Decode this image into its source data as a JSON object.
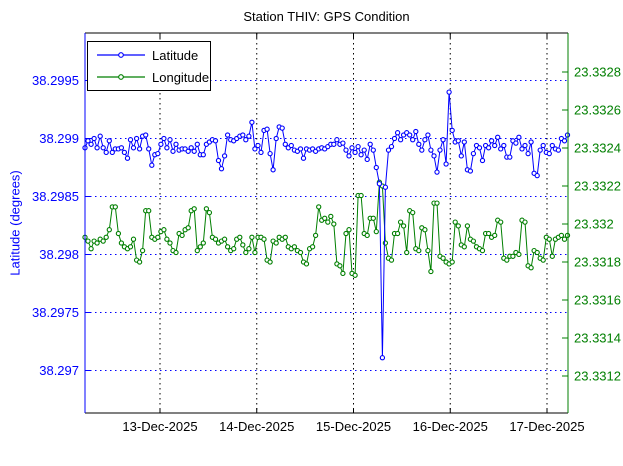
{
  "figure": {
    "title": "Station THIV: GPS Condition"
  },
  "chart_data": {
    "type": "line",
    "title": "Station THIV: GPS Condition",
    "x_axis": {
      "tick_labels": [
        "13-Dec-2025",
        "14-Dec-2025",
        "15-Dec-2025",
        "16-Dec-2025",
        "17-Dec-2025"
      ],
      "tick_values_days": [
        1,
        2,
        3,
        4,
        5
      ],
      "range_days": [
        0.2247,
        5.2119
      ]
    },
    "left_axis": {
      "label": "Latitude (degrees)",
      "color": "#0000ff",
      "tick_labels": [
        "38.2995",
        "38.299",
        "38.2985",
        "38.298",
        "38.2975",
        "38.297"
      ],
      "tick_values": [
        38.2995,
        38.299,
        38.2985,
        38.298,
        38.2975,
        38.297
      ],
      "range": [
        38.29663,
        38.29991
      ]
    },
    "right_axis": {
      "color": "#007f00",
      "tick_labels": [
        "23.3328",
        "23.3326",
        "23.3324",
        "23.3322",
        "23.332",
        "23.3318",
        "23.3316",
        "23.3314",
        "23.3312"
      ],
      "tick_values": [
        23.3328,
        23.3326,
        23.3324,
        23.3322,
        23.332,
        23.3318,
        23.3316,
        23.3314,
        23.3312
      ],
      "range": [
        23.33101,
        23.33301
      ]
    },
    "legend": [
      {
        "label": "Latitude",
        "color": "#0000ff"
      },
      {
        "label": "Longitude",
        "color": "#007f00"
      }
    ],
    "grid": {
      "horizontal_color": "#0000ff",
      "vertical_color": "#000000",
      "style": "dotted"
    },
    "x_start_days": 0.2247,
    "x_step_days": 0.031366,
    "series": [
      {
        "name": "Latitude",
        "axis": "left",
        "color": "#0000ff",
        "marker": "o",
        "values": [
          38.29892,
          38.29898,
          38.29895,
          38.299,
          38.29892,
          38.29902,
          38.29892,
          38.29888,
          38.29898,
          38.29888,
          38.29891,
          38.29891,
          38.29892,
          38.29888,
          38.29883,
          38.29899,
          38.29892,
          38.299,
          38.29891,
          38.29902,
          38.29903,
          38.29891,
          38.29877,
          38.29886,
          38.29887,
          38.29895,
          38.299,
          38.29892,
          38.29899,
          38.29889,
          38.29895,
          38.2989,
          38.29891,
          38.29891,
          38.29889,
          38.29892,
          38.29889,
          38.29895,
          38.29886,
          38.29886,
          38.29895,
          38.29897,
          38.29899,
          38.29898,
          38.29881,
          38.29874,
          38.29885,
          38.29903,
          38.29899,
          38.29898,
          38.299,
          38.29902,
          38.29903,
          38.29899,
          38.29902,
          38.29914,
          38.29891,
          38.29894,
          38.29888,
          38.29907,
          38.29908,
          38.29887,
          38.29873,
          38.299,
          38.2991,
          38.29909,
          38.29895,
          38.29892,
          38.29894,
          38.2989,
          38.29889,
          38.29891,
          38.29883,
          38.29891,
          38.2989,
          38.29891,
          38.29889,
          38.29891,
          38.29892,
          38.29891,
          38.29893,
          38.29895,
          38.29895,
          38.29899,
          38.29895,
          38.29896,
          38.2989,
          38.29885,
          38.29892,
          38.29888,
          38.29893,
          38.29886,
          38.2989,
          38.29882,
          38.29895,
          38.2989,
          38.29875,
          38.29861,
          38.29711,
          38.29858,
          38.2989,
          38.29893,
          38.299,
          38.29905,
          38.29899,
          38.29903,
          38.29905,
          38.29903,
          38.29899,
          38.29906,
          38.29895,
          38.2989,
          38.29899,
          38.29903,
          38.2989,
          38.29885,
          38.29871,
          38.2989,
          38.29899,
          38.29878,
          38.2994,
          38.29907,
          38.29897,
          38.29898,
          38.29885,
          38.29897,
          38.29873,
          38.29872,
          38.29887,
          38.29894,
          38.29892,
          38.29881,
          38.29894,
          38.29892,
          38.29898,
          38.29894,
          38.29901,
          38.29891,
          38.29894,
          38.29884,
          38.29884,
          38.29898,
          38.29896,
          38.29901,
          38.29891,
          38.29894,
          38.29887,
          38.29897,
          38.2987,
          38.29868,
          38.2989,
          38.29894,
          38.29888,
          38.29887,
          38.29894,
          38.29891,
          38.2989,
          38.299,
          38.29898,
          38.29903
        ]
      },
      {
        "name": "Longitude",
        "axis": "right",
        "color": "#007f00",
        "marker": "o",
        "values": [
          23.33193,
          23.33191,
          23.33187,
          23.33191,
          23.3319,
          23.33192,
          23.33191,
          23.33193,
          23.33197,
          23.33209,
          23.33209,
          23.33195,
          23.3319,
          23.33188,
          23.33187,
          23.33188,
          23.33192,
          23.33181,
          23.3318,
          23.33186,
          23.33207,
          23.33207,
          23.33193,
          23.33192,
          23.33193,
          23.33196,
          23.33197,
          23.33192,
          23.3319,
          23.33186,
          23.33185,
          23.33195,
          23.33194,
          23.33197,
          23.33198,
          23.33207,
          23.33208,
          23.33186,
          23.33188,
          23.3319,
          23.33208,
          23.33206,
          23.33193,
          23.33192,
          23.3319,
          23.33191,
          23.33192,
          23.33188,
          23.33186,
          23.33187,
          23.33192,
          23.33193,
          23.33189,
          23.33185,
          23.33187,
          23.33193,
          23.33185,
          23.33193,
          23.33193,
          23.33192,
          23.33181,
          23.3318,
          23.33191,
          23.3319,
          23.33193,
          23.33192,
          23.33193,
          23.33188,
          23.33187,
          23.33188,
          23.33186,
          23.33185,
          23.3318,
          23.33179,
          23.33187,
          23.33188,
          23.33194,
          23.33209,
          23.33202,
          23.33203,
          23.33201,
          23.33204,
          23.332,
          23.33179,
          23.33178,
          23.33174,
          23.33195,
          23.33197,
          23.33174,
          23.33173,
          23.33215,
          23.33215,
          23.33195,
          23.33194,
          23.33203,
          23.33203,
          23.33196,
          23.33222,
          23.3322,
          23.3319,
          23.33182,
          23.33181,
          23.33195,
          23.33195,
          23.33201,
          23.33199,
          23.33185,
          23.33207,
          23.33206,
          23.33187,
          23.33186,
          23.33198,
          23.33197,
          23.33186,
          23.33175,
          23.33211,
          23.33211,
          23.33183,
          23.33182,
          23.3318,
          23.33179,
          23.3318,
          23.33201,
          23.33199,
          23.33189,
          23.33188,
          23.33199,
          23.33192,
          23.33191,
          23.33188,
          23.33187,
          23.33186,
          23.33195,
          23.33195,
          23.33193,
          23.33194,
          23.33202,
          23.33201,
          23.33182,
          23.33181,
          23.33183,
          23.33183,
          23.33185,
          23.33184,
          23.33202,
          23.33201,
          23.33178,
          23.33177,
          23.33186,
          23.33185,
          23.33182,
          23.33181,
          23.33193,
          23.33192,
          23.33183,
          23.33192,
          23.33193,
          23.33194,
          23.33192,
          23.33194
        ]
      }
    ]
  }
}
